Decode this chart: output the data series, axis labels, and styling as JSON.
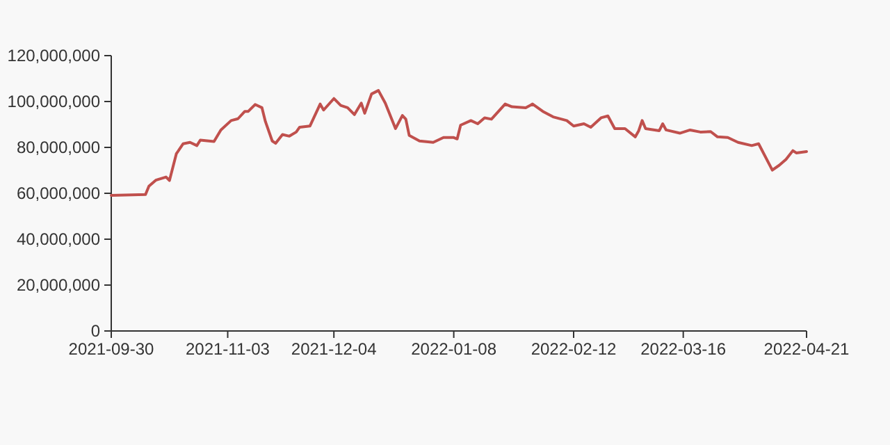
{
  "chart_data": {
    "type": "line",
    "x": [
      "2021-09-30",
      "2021-10-10",
      "2021-10-11",
      "2021-10-13",
      "2021-10-16",
      "2021-10-17",
      "2021-10-19",
      "2021-10-21",
      "2021-10-23",
      "2021-10-25",
      "2021-10-26",
      "2021-10-30",
      "2021-11-01",
      "2021-11-04",
      "2021-11-06",
      "2021-11-08",
      "2021-11-09",
      "2021-11-11",
      "2021-11-13",
      "2021-11-14",
      "2021-11-16",
      "2021-11-17",
      "2021-11-19",
      "2021-11-21",
      "2021-11-23",
      "2021-11-24",
      "2021-11-27",
      "2021-11-30",
      "2021-12-01",
      "2021-12-04",
      "2021-12-06",
      "2021-12-08",
      "2021-12-10",
      "2021-12-12",
      "2021-12-13",
      "2021-12-15",
      "2021-12-17",
      "2021-12-19",
      "2021-12-22",
      "2021-12-24",
      "2021-12-25",
      "2021-12-26",
      "2021-12-29",
      "2022-01-02",
      "2022-01-05",
      "2022-01-08",
      "2022-01-09",
      "2022-01-10",
      "2022-01-13",
      "2022-01-15",
      "2022-01-17",
      "2022-01-19",
      "2022-01-23",
      "2022-01-25",
      "2022-01-29",
      "2022-01-31",
      "2022-02-03",
      "2022-02-06",
      "2022-02-10",
      "2022-02-12",
      "2022-02-15",
      "2022-02-17",
      "2022-02-20",
      "2022-02-22",
      "2022-02-24",
      "2022-02-27",
      "2022-03-02",
      "2022-03-03",
      "2022-03-04",
      "2022-03-05",
      "2022-03-09",
      "2022-03-10",
      "2022-03-11",
      "2022-03-15",
      "2022-03-18",
      "2022-03-21",
      "2022-03-24",
      "2022-03-26",
      "2022-03-29",
      "2022-04-01",
      "2022-04-05",
      "2022-04-07",
      "2022-04-11",
      "2022-04-13",
      "2022-04-15",
      "2022-04-17",
      "2022-04-18",
      "2022-04-21"
    ],
    "series": [
      {
        "color": "#c0504d",
        "values": [
          59100000,
          59500000,
          63100000,
          65700000,
          67100000,
          65600000,
          77200000,
          81600000,
          82200000,
          80800000,
          83200000,
          82600000,
          87600000,
          91700000,
          92500000,
          95700000,
          95700000,
          98700000,
          97300000,
          91300000,
          82800000,
          81800000,
          85600000,
          84900000,
          86700000,
          88800000,
          89300000,
          98900000,
          96300000,
          101300000,
          98300000,
          97300000,
          94300000,
          99300000,
          94900000,
          103300000,
          104800000,
          99300000,
          88200000,
          93900000,
          92300000,
          85200000,
          82800000,
          82200000,
          84300000,
          84300000,
          83700000,
          89700000,
          91700000,
          90300000,
          92900000,
          92300000,
          98900000,
          97700000,
          97300000,
          98900000,
          95700000,
          93300000,
          91700000,
          89300000,
          90300000,
          88800000,
          92900000,
          93700000,
          88200000,
          88200000,
          84600000,
          87300000,
          91700000,
          88200000,
          87300000,
          90300000,
          87600000,
          86200000,
          87600000,
          86700000,
          86900000,
          84600000,
          84300000,
          82200000,
          80800000,
          81600000,
          70100000,
          72200000,
          74800000,
          78600000,
          77600000,
          78200000
        ]
      }
    ],
    "xlim": [
      "2021-09-30",
      "2022-04-21"
    ],
    "xticks": [
      "2021-09-30",
      "2021-11-03",
      "2021-12-04",
      "2022-01-08",
      "2022-02-12",
      "2022-03-16",
      "2022-04-21"
    ],
    "ylim": [
      0,
      120000000
    ],
    "yticks": [
      {
        "value": 0,
        "label": "0"
      },
      {
        "value": 20000000,
        "label": "20,000,000"
      },
      {
        "value": 40000000,
        "label": "40,000,000"
      },
      {
        "value": 60000000,
        "label": "60,000,000"
      },
      {
        "value": 80000000,
        "label": "80,000,000"
      },
      {
        "value": 100000000,
        "label": "100,000,000"
      },
      {
        "value": 120000000,
        "label": "120,000,000"
      }
    ],
    "grid": false,
    "marker": "none",
    "line_style": "solid"
  }
}
